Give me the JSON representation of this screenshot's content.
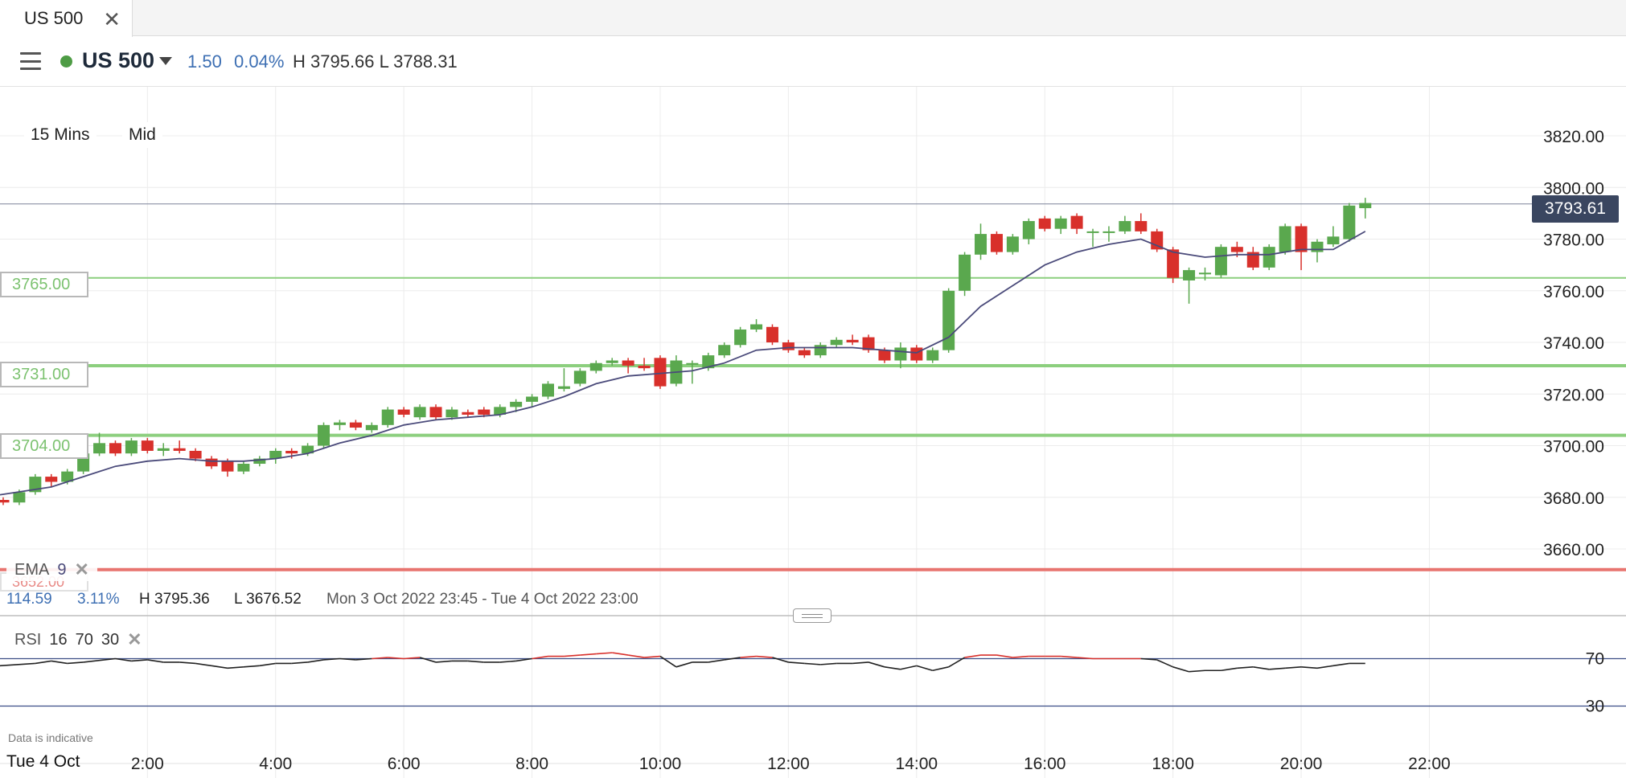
{
  "tab": {
    "label": "US 500",
    "close_icon": "close-icon"
  },
  "header": {
    "instrument": "US 500",
    "status_color": "#4e9c45",
    "change": "1.50",
    "change_pct": "0.04%",
    "high_low": "H 3795.66  L 3788.31"
  },
  "controls": {
    "interval": "15 Mins",
    "price_type": "Mid"
  },
  "levels": [
    {
      "label": "3765.00",
      "value": 3765
    },
    {
      "label": "3731.00",
      "value": 3731
    },
    {
      "label": "3704.00",
      "value": 3704
    },
    {
      "label": "3652.00",
      "value": 3652
    }
  ],
  "current_price": {
    "label": "3793.61",
    "value": 3793.61
  },
  "ema": {
    "label": "EMA",
    "period": "9"
  },
  "stats": {
    "change": "114.59",
    "change_pct": "3.11%",
    "high": "H 3795.36",
    "low": "L 3676.52",
    "range": "Mon 3 Oct 2022 23:45 - Tue 4 Oct 2022 23:00"
  },
  "rsi": {
    "label": "RSI",
    "period": "16",
    "upper": "70",
    "lower": "30"
  },
  "disclaimer": "Data is indicative",
  "date_label": "Tue 4 Oct",
  "colors": {
    "up": "#5aa84e",
    "down": "#d8302b",
    "ema": "#4a4a7a",
    "level": "#8ccf7e",
    "rsi": "#222222",
    "rsi_hot": "#d8302b",
    "rsi_band": "#3c4e86"
  },
  "chart_data": {
    "type": "candlestick",
    "y_ticks": [
      "3820.00",
      "3800.00",
      "3780.00",
      "3760.00",
      "3740.00",
      "3720.00",
      "3700.00",
      "3680.00",
      "3660.00"
    ],
    "y_tick_values": [
      3820,
      3800,
      3780,
      3760,
      3740,
      3720,
      3700,
      3680,
      3660
    ],
    "ylim": [
      3646,
      3839
    ],
    "x_ticks": [
      "2:00",
      "4:00",
      "6:00",
      "8:00",
      "10:00",
      "12:00",
      "14:00",
      "16:00",
      "18:00",
      "20:00",
      "22:00"
    ],
    "x_tick_hours": [
      2,
      4,
      6,
      8,
      10,
      12,
      14,
      16,
      18,
      20,
      22
    ],
    "xlim_hours": [
      -0.3,
      23.6
    ],
    "interval_hours": 0.25,
    "candles": [
      [
        -0.25,
        3679,
        3680,
        3677,
        3678
      ],
      [
        0.0,
        3678,
        3683,
        3677,
        3682
      ],
      [
        0.25,
        3682,
        3689,
        3681,
        3688
      ],
      [
        0.5,
        3688,
        3689,
        3684,
        3686
      ],
      [
        0.75,
        3686,
        3691,
        3685,
        3690
      ],
      [
        1.0,
        3690,
        3698,
        3689,
        3697
      ],
      [
        1.25,
        3697,
        3705,
        3696,
        3701
      ],
      [
        1.5,
        3701,
        3702,
        3696,
        3697
      ],
      [
        1.75,
        3697,
        3703,
        3696,
        3702
      ],
      [
        2.0,
        3702,
        3703,
        3697,
        3698
      ],
      [
        2.25,
        3698,
        3701,
        3696,
        3699
      ],
      [
        2.5,
        3699,
        3702,
        3697,
        3698
      ],
      [
        2.75,
        3698,
        3699,
        3694,
        3695
      ],
      [
        3.0,
        3695,
        3696,
        3691,
        3692
      ],
      [
        3.25,
        3694,
        3695,
        3688,
        3690
      ],
      [
        3.5,
        3690,
        3694,
        3689,
        3693
      ],
      [
        3.75,
        3693,
        3696,
        3692,
        3695
      ],
      [
        4.0,
        3695,
        3699,
        3693,
        3698
      ],
      [
        4.25,
        3698,
        3699,
        3695,
        3697
      ],
      [
        4.5,
        3697,
        3701,
        3696,
        3700
      ],
      [
        4.75,
        3700,
        3709,
        3699,
        3708
      ],
      [
        5.0,
        3708,
        3710,
        3706,
        3709
      ],
      [
        5.25,
        3709,
        3710,
        3706,
        3707
      ],
      [
        5.5,
        3706,
        3709,
        3705,
        3708
      ],
      [
        5.75,
        3708,
        3715,
        3707,
        3714
      ],
      [
        6.0,
        3714,
        3715,
        3711,
        3712
      ],
      [
        6.25,
        3711,
        3716,
        3710,
        3715
      ],
      [
        6.5,
        3715,
        3716,
        3710,
        3711
      ],
      [
        6.75,
        3711,
        3715,
        3710,
        3714
      ],
      [
        7.0,
        3713,
        3714,
        3711,
        3712
      ],
      [
        7.25,
        3714,
        3715,
        3711,
        3712
      ],
      [
        7.5,
        3712,
        3716,
        3711,
        3715
      ],
      [
        7.75,
        3715,
        3718,
        3713,
        3717
      ],
      [
        8.0,
        3717,
        3720,
        3715,
        3719
      ],
      [
        8.25,
        3719,
        3725,
        3718,
        3724
      ],
      [
        8.5,
        3722,
        3730,
        3721,
        3723
      ],
      [
        8.75,
        3724,
        3730,
        3723,
        3729
      ],
      [
        9.0,
        3729,
        3733,
        3728,
        3732
      ],
      [
        9.25,
        3732,
        3734,
        3731,
        3733
      ],
      [
        9.5,
        3733,
        3734,
        3728,
        3731
      ],
      [
        9.75,
        3731,
        3734,
        3729,
        3730
      ],
      [
        10.0,
        3734,
        3735,
        3722,
        3723
      ],
      [
        10.25,
        3724,
        3735,
        3723,
        3733
      ],
      [
        10.5,
        3732,
        3733,
        3724,
        3732
      ],
      [
        10.75,
        3730,
        3736,
        3729,
        3735
      ],
      [
        11.0,
        3735,
        3740,
        3734,
        3739
      ],
      [
        11.25,
        3739,
        3746,
        3738,
        3745
      ],
      [
        11.5,
        3745,
        3749,
        3744,
        3747
      ],
      [
        11.75,
        3746,
        3747,
        3739,
        3740
      ],
      [
        12.0,
        3740,
        3741,
        3736,
        3737
      ],
      [
        12.25,
        3737,
        3738,
        3734,
        3735
      ],
      [
        12.5,
        3735,
        3740,
        3734,
        3739
      ],
      [
        12.75,
        3739,
        3742,
        3738,
        3741
      ],
      [
        13.0,
        3741,
        3743,
        3739,
        3740
      ],
      [
        13.25,
        3742,
        3743,
        3736,
        3737
      ],
      [
        13.5,
        3737,
        3738,
        3732,
        3733
      ],
      [
        13.75,
        3733,
        3740,
        3730,
        3738
      ],
      [
        14.0,
        3738,
        3739,
        3732,
        3733
      ],
      [
        14.25,
        3733,
        3738,
        3732,
        3737
      ],
      [
        14.5,
        3737,
        3761,
        3736,
        3760
      ],
      [
        14.75,
        3760,
        3775,
        3758,
        3774
      ],
      [
        15.0,
        3774,
        3786,
        3772,
        3782
      ],
      [
        15.25,
        3782,
        3783,
        3774,
        3775
      ],
      [
        15.5,
        3775,
        3782,
        3774,
        3781
      ],
      [
        15.75,
        3780,
        3788,
        3778,
        3787
      ],
      [
        16.0,
        3788,
        3789,
        3783,
        3784
      ],
      [
        16.25,
        3784,
        3789,
        3782,
        3788
      ],
      [
        16.5,
        3789,
        3790,
        3782,
        3784
      ],
      [
        16.75,
        3783,
        3784,
        3777,
        3783
      ],
      [
        17.0,
        3783,
        3785,
        3779,
        3783
      ],
      [
        17.25,
        3783,
        3789,
        3782,
        3787
      ],
      [
        17.5,
        3787,
        3790,
        3782,
        3783
      ],
      [
        17.75,
        3783,
        3784,
        3775,
        3776
      ],
      [
        18.0,
        3776,
        3777,
        3763,
        3765
      ],
      [
        18.25,
        3764,
        3769,
        3755,
        3768
      ],
      [
        18.5,
        3767,
        3769,
        3764,
        3767
      ],
      [
        18.75,
        3766,
        3778,
        3765,
        3777
      ],
      [
        19.0,
        3777,
        3779,
        3773,
        3775
      ],
      [
        19.25,
        3775,
        3777,
        3768,
        3769
      ],
      [
        19.5,
        3769,
        3778,
        3768,
        3777
      ],
      [
        19.75,
        3775,
        3786,
        3774,
        3785
      ],
      [
        20.0,
        3785,
        3786,
        3768,
        3775
      ],
      [
        20.25,
        3775,
        3780,
        3771,
        3779
      ],
      [
        20.5,
        3778,
        3785,
        3777,
        3781
      ],
      [
        20.75,
        3780,
        3794,
        3779,
        3793
      ],
      [
        21.0,
        3792,
        3796,
        3788,
        3794
      ]
    ],
    "ema": [
      [
        -0.3,
        3681
      ],
      [
        0.5,
        3684
      ],
      [
        1.0,
        3688
      ],
      [
        1.5,
        3692
      ],
      [
        2.0,
        3694
      ],
      [
        2.5,
        3695
      ],
      [
        3.0,
        3694
      ],
      [
        3.5,
        3694
      ],
      [
        4.0,
        3695
      ],
      [
        4.5,
        3697
      ],
      [
        5.0,
        3701
      ],
      [
        5.5,
        3704
      ],
      [
        6.0,
        3708
      ],
      [
        6.5,
        3710
      ],
      [
        7.0,
        3711
      ],
      [
        7.5,
        3712
      ],
      [
        8.0,
        3715
      ],
      [
        8.5,
        3719
      ],
      [
        9.0,
        3724
      ],
      [
        9.5,
        3727
      ],
      [
        10.0,
        3728
      ],
      [
        10.5,
        3729
      ],
      [
        11.0,
        3732
      ],
      [
        11.5,
        3737
      ],
      [
        12.0,
        3738
      ],
      [
        12.5,
        3738
      ],
      [
        13.0,
        3738
      ],
      [
        13.5,
        3737
      ],
      [
        14.0,
        3736
      ],
      [
        14.5,
        3742
      ],
      [
        15.0,
        3754
      ],
      [
        15.5,
        3762
      ],
      [
        16.0,
        3770
      ],
      [
        16.5,
        3775
      ],
      [
        17.0,
        3778
      ],
      [
        17.5,
        3780
      ],
      [
        18.0,
        3775
      ],
      [
        18.5,
        3773
      ],
      [
        19.0,
        3774
      ],
      [
        19.5,
        3774
      ],
      [
        20.0,
        3776
      ],
      [
        20.5,
        3776
      ],
      [
        21.0,
        3783
      ]
    ],
    "rsi_ylim": [
      10,
      90
    ],
    "rsi": [
      [
        -0.3,
        64
      ],
      [
        0.25,
        66
      ],
      [
        0.5,
        68
      ],
      [
        0.75,
        66
      ],
      [
        1.0,
        67
      ],
      [
        1.5,
        70
      ],
      [
        1.75,
        68
      ],
      [
        2.0,
        69
      ],
      [
        2.25,
        67
      ],
      [
        2.5,
        67
      ],
      [
        2.75,
        66
      ],
      [
        3.0,
        64
      ],
      [
        3.25,
        62
      ],
      [
        3.5,
        63
      ],
      [
        3.75,
        64
      ],
      [
        4.0,
        66
      ],
      [
        4.25,
        66
      ],
      [
        4.5,
        67
      ],
      [
        4.75,
        69
      ],
      [
        5.0,
        70
      ],
      [
        5.25,
        69
      ],
      [
        5.5,
        70
      ],
      [
        5.75,
        71
      ],
      [
        6.0,
        70
      ],
      [
        6.25,
        71
      ],
      [
        6.5,
        67
      ],
      [
        6.75,
        68
      ],
      [
        7.0,
        68
      ],
      [
        7.25,
        67
      ],
      [
        7.5,
        67
      ],
      [
        7.75,
        68
      ],
      [
        8.0,
        70
      ],
      [
        8.25,
        72
      ],
      [
        8.5,
        72
      ],
      [
        8.75,
        73
      ],
      [
        9.0,
        74
      ],
      [
        9.25,
        75
      ],
      [
        9.5,
        73
      ],
      [
        9.75,
        71
      ],
      [
        10.0,
        72
      ],
      [
        10.25,
        63
      ],
      [
        10.5,
        67
      ],
      [
        10.75,
        67
      ],
      [
        11.0,
        69
      ],
      [
        11.25,
        71
      ],
      [
        11.5,
        72
      ],
      [
        11.75,
        71
      ],
      [
        12.0,
        67
      ],
      [
        12.25,
        66
      ],
      [
        12.5,
        65
      ],
      [
        12.75,
        66
      ],
      [
        13.0,
        66
      ],
      [
        13.25,
        67
      ],
      [
        13.5,
        63
      ],
      [
        13.75,
        61
      ],
      [
        14.0,
        64
      ],
      [
        14.25,
        60
      ],
      [
        14.5,
        63
      ],
      [
        14.75,
        71
      ],
      [
        15.0,
        73
      ],
      [
        15.25,
        73
      ],
      [
        15.5,
        71
      ],
      [
        15.75,
        72
      ],
      [
        16.0,
        72
      ],
      [
        16.25,
        72
      ],
      [
        16.5,
        71
      ],
      [
        16.75,
        70
      ],
      [
        17.0,
        70
      ],
      [
        17.25,
        70
      ],
      [
        17.5,
        70
      ],
      [
        17.75,
        69
      ],
      [
        18.0,
        63
      ],
      [
        18.25,
        59
      ],
      [
        18.5,
        60
      ],
      [
        18.75,
        60
      ],
      [
        19.0,
        62
      ],
      [
        19.25,
        63
      ],
      [
        19.5,
        61
      ],
      [
        19.75,
        62
      ],
      [
        20.0,
        63
      ],
      [
        20.25,
        62
      ],
      [
        20.5,
        64
      ],
      [
        20.75,
        66
      ],
      [
        21.0,
        66
      ]
    ]
  }
}
